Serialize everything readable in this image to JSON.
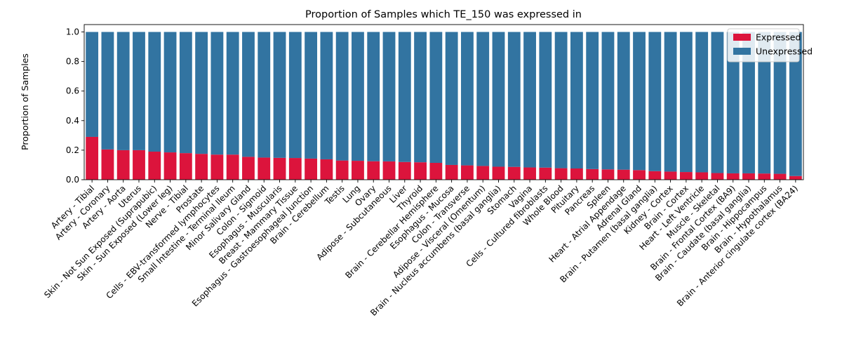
{
  "chart_data": {
    "type": "bar",
    "stacked": true,
    "title": "Proportion of Samples which TE_150 was expressed in",
    "xlabel": "",
    "ylabel": "Proportion of Samples",
    "ylim": [
      0,
      1.05
    ],
    "yticks": [
      "0.0",
      "0.2",
      "0.4",
      "0.6",
      "0.8",
      "1.0"
    ],
    "legend_position": "top-right",
    "categories": [
      "Artery - Tibial",
      "Artery - Coronary",
      "Artery - Aorta",
      "Uterus",
      "Skin - Not Sun Exposed (Suprapubic)",
      "Skin - Sun Exposed (Lower leg)",
      "Nerve - Tibial",
      "Prostate",
      "Cells - EBV-transformed lymphocytes",
      "Small Intestine - Terminal Ileum",
      "Minor Salivary Gland",
      "Colon - Sigmoid",
      "Esophagus - Muscularis",
      "Breast - Mammary Tissue",
      "Esophagus - Gastroesophageal Junction",
      "Brain - Cerebellum",
      "Testis",
      "Lung",
      "Ovary",
      "Adipose - Subcutaneous",
      "Liver",
      "Thyroid",
      "Brain - Cerebellar Hemisphere",
      "Esophagus - Mucosa",
      "Colon - Transverse",
      "Adipose - Visceral (Omentum)",
      "Brain - Nucleus accumbens (basal ganglia)",
      "Stomach",
      "Vagina",
      "Cells - Cultured fibroblasts",
      "Whole Blood",
      "Pituitary",
      "Pancreas",
      "Spleen",
      "Heart - Atrial Appendage",
      "Adrenal Gland",
      "Brain - Putamen (basal ganglia)",
      "Kidney - Cortex",
      "Brain - Cortex",
      "Heart - Left Ventricle",
      "Muscle - Skeletal",
      "Brain - Frontal Cortex (BA9)",
      "Brain - Caudate (basal ganglia)",
      "Brain - Hippocampus",
      "Brain - Hypothalamus",
      "Brain - Anterior cingulate cortex (BA24)"
    ],
    "series": [
      {
        "name": "Expressed",
        "color": "#dc143c",
        "values": [
          0.29,
          0.205,
          0.2,
          0.2,
          0.19,
          0.185,
          0.18,
          0.175,
          0.17,
          0.17,
          0.155,
          0.15,
          0.148,
          0.147,
          0.143,
          0.138,
          0.13,
          0.128,
          0.125,
          0.124,
          0.12,
          0.118,
          0.114,
          0.1,
          0.097,
          0.093,
          0.088,
          0.087,
          0.083,
          0.082,
          0.078,
          0.076,
          0.072,
          0.07,
          0.068,
          0.065,
          0.058,
          0.055,
          0.052,
          0.05,
          0.045,
          0.043,
          0.043,
          0.042,
          0.04,
          0.025
        ]
      },
      {
        "name": "Unexpressed",
        "color": "#3274a1",
        "values": [
          0.71,
          0.795,
          0.8,
          0.8,
          0.81,
          0.815,
          0.82,
          0.825,
          0.83,
          0.83,
          0.845,
          0.85,
          0.852,
          0.853,
          0.857,
          0.862,
          0.87,
          0.872,
          0.875,
          0.876,
          0.88,
          0.882,
          0.886,
          0.9,
          0.903,
          0.907,
          0.912,
          0.913,
          0.917,
          0.918,
          0.922,
          0.924,
          0.928,
          0.93,
          0.932,
          0.935,
          0.942,
          0.945,
          0.948,
          0.95,
          0.955,
          0.957,
          0.957,
          0.958,
          0.96,
          0.975
        ]
      }
    ]
  }
}
